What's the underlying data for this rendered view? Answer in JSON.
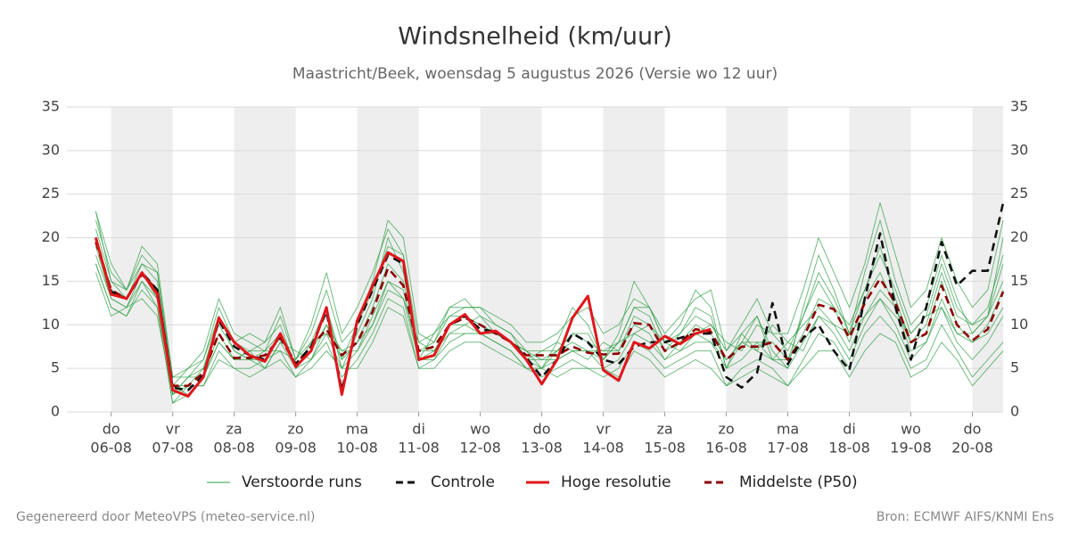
{
  "chart_data": {
    "type": "line",
    "title": "Windsnelheid (km/uur)",
    "subtitle": "Maastricht/Beek, woensdag  5 augustus 2026 (Versie wo 12 uur)",
    "footer_left": "Gegenereerd door MeteoVPS (meteo-service.nl)",
    "footer_right": "Bron: ECMWF AIFS/KNMI Ens",
    "grid": true,
    "xlim": [
      -0.72,
      14.5
    ],
    "ylim": [
      0,
      35
    ],
    "yticks": [
      0,
      5,
      10,
      15,
      20,
      25,
      30,
      35
    ],
    "xticks": [
      {
        "value": 0,
        "label": "06-08",
        "day": "do"
      },
      {
        "value": 1,
        "label": "07-08",
        "day": "vr"
      },
      {
        "value": 2,
        "label": "08-08",
        "day": "za"
      },
      {
        "value": 3,
        "label": "09-08",
        "day": "zo"
      },
      {
        "value": 4,
        "label": "10-08",
        "day": "ma"
      },
      {
        "value": 5,
        "label": "11-08",
        "day": "di"
      },
      {
        "value": 6,
        "label": "12-08",
        "day": "wo"
      },
      {
        "value": 7,
        "label": "13-08",
        "day": "do"
      },
      {
        "value": 8,
        "label": "14-08",
        "day": "vr"
      },
      {
        "value": 9,
        "label": "15-08",
        "day": "za"
      },
      {
        "value": 10,
        "label": "16-08",
        "day": "zo"
      },
      {
        "value": 11,
        "label": "17-08",
        "day": "ma"
      },
      {
        "value": 12,
        "label": "18-08",
        "day": "di"
      },
      {
        "value": 13,
        "label": "19-08",
        "day": "wo"
      },
      {
        "value": 14,
        "label": "20-08",
        "day": "do"
      }
    ],
    "x": [
      -0.25,
      0,
      0.25,
      0.5,
      0.75,
      1,
      1.25,
      1.5,
      1.75,
      2,
      2.25,
      2.5,
      2.75,
      3,
      3.25,
      3.5,
      3.75,
      4,
      4.25,
      4.5,
      4.75,
      5,
      5.25,
      5.5,
      5.75,
      6,
      6.25,
      6.5,
      6.75,
      7,
      7.25,
      7.5,
      7.75,
      8,
      8.25,
      8.5,
      8.75,
      9,
      9.25,
      9.5,
      9.75,
      10,
      10.25,
      10.5,
      10.75,
      11,
      11.25,
      11.5,
      11.75,
      12,
      12.25,
      12.5,
      12.75,
      13,
      13.25,
      13.5,
      13.75,
      14,
      14.25,
      14.5
    ],
    "series": [
      {
        "name": "Verstoorde runs",
        "color": "#2e9e44",
        "members": [
          [
            23,
            17,
            14,
            19,
            17,
            4,
            5,
            7,
            13,
            9,
            8,
            7,
            11,
            6,
            9,
            14,
            8,
            10,
            15,
            22,
            20,
            9,
            8,
            12,
            13,
            11,
            10,
            9,
            7,
            5,
            8,
            12,
            10,
            6,
            9,
            15,
            12,
            8,
            10,
            14,
            12,
            5,
            9,
            11,
            7,
            5,
            12,
            18,
            14,
            9,
            16,
            22,
            15,
            10,
            12,
            18,
            13,
            9,
            11,
            20
          ],
          [
            17,
            12,
            11,
            14,
            12,
            1,
            3,
            3,
            7,
            5,
            5,
            6,
            7,
            4,
            6,
            8,
            4,
            6,
            9,
            13,
            12,
            5,
            6,
            8,
            9,
            9,
            8,
            7,
            5,
            4,
            5,
            6,
            5,
            4,
            5,
            8,
            7,
            5,
            6,
            7,
            7,
            3,
            5,
            6,
            5,
            3,
            6,
            9,
            8,
            5,
            9,
            11,
            9,
            5,
            6,
            10,
            7,
            4,
            6,
            8
          ],
          [
            21,
            15,
            13,
            17,
            15,
            2,
            4,
            5,
            11,
            7,
            6,
            7,
            9,
            5,
            8,
            12,
            5,
            9,
            13,
            20,
            16,
            7,
            8,
            11,
            11,
            10,
            9,
            8,
            6,
            7,
            7,
            9,
            8,
            7,
            8,
            12,
            11,
            7,
            9,
            11,
            10,
            8,
            7,
            10,
            9,
            7,
            11,
            15,
            12,
            10,
            14,
            19,
            13,
            8,
            10,
            16,
            11,
            10,
            12,
            18
          ],
          [
            19,
            13,
            12,
            15,
            13,
            3,
            2,
            4,
            8,
            6,
            7,
            5,
            8,
            7,
            6,
            10,
            7,
            7,
            11,
            15,
            13,
            6,
            7,
            9,
            10,
            11,
            9,
            8,
            7,
            6,
            6,
            7,
            6,
            8,
            7,
            10,
            9,
            6,
            8,
            9,
            8,
            6,
            8,
            7,
            6,
            8,
            7,
            11,
            10,
            7,
            11,
            14,
            12,
            7,
            8,
            13,
            9,
            8,
            9,
            12
          ],
          [
            22,
            16,
            14,
            18,
            16,
            4,
            4,
            6,
            12,
            8,
            9,
            8,
            12,
            6,
            10,
            16,
            9,
            12,
            16,
            21,
            18,
            8,
            9,
            12,
            12,
            12,
            11,
            10,
            8,
            8,
            9,
            11,
            12,
            9,
            10,
            13,
            12,
            9,
            11,
            13,
            14,
            7,
            10,
            13,
            9,
            9,
            14,
            20,
            16,
            12,
            17,
            24,
            18,
            12,
            14,
            20,
            15,
            12,
            14,
            22
          ],
          [
            16,
            11,
            12,
            13,
            11,
            2,
            3,
            3,
            6,
            5,
            4,
            5,
            6,
            4,
            5,
            7,
            5,
            5,
            8,
            12,
            11,
            5,
            5,
            7,
            8,
            8,
            7,
            6,
            5,
            5,
            4,
            5,
            5,
            5,
            4,
            7,
            6,
            4,
            5,
            6,
            5,
            3,
            4,
            5,
            4,
            3,
            5,
            7,
            7,
            4,
            7,
            9,
            8,
            4,
            5,
            8,
            6,
            3,
            5,
            7
          ],
          [
            20,
            14,
            13,
            16,
            14,
            3,
            3,
            5,
            10,
            7,
            6,
            6,
            9,
            5,
            7,
            10,
            6,
            8,
            12,
            17,
            15,
            7,
            7,
            10,
            11,
            10,
            9,
            8,
            6,
            6,
            7,
            8,
            7,
            7,
            7,
            11,
            10,
            7,
            8,
            10,
            9,
            6,
            8,
            8,
            8,
            6,
            9,
            13,
            12,
            8,
            13,
            16,
            12,
            8,
            9,
            15,
            10,
            8,
            10,
            14
          ],
          [
            18,
            13,
            12,
            16,
            13,
            2,
            4,
            4,
            9,
            6,
            7,
            7,
            7,
            6,
            8,
            9,
            7,
            8,
            10,
            14,
            13,
            8,
            7,
            10,
            10,
            9,
            9,
            8,
            7,
            7,
            8,
            7,
            7,
            6,
            8,
            9,
            10,
            8,
            7,
            9,
            10,
            7,
            9,
            7,
            10,
            8,
            10,
            12,
            10,
            9,
            11,
            13,
            11,
            9,
            11,
            12,
            9,
            9,
            11,
            15
          ],
          [
            23,
            15,
            14,
            17,
            16,
            3,
            5,
            6,
            11,
            8,
            7,
            8,
            10,
            5,
            7,
            12,
            6,
            10,
            14,
            19,
            18,
            6,
            9,
            11,
            12,
            12,
            10,
            9,
            6,
            5,
            7,
            9,
            9,
            6,
            8,
            12,
            12,
            8,
            9,
            12,
            11,
            5,
            8,
            11,
            6,
            6,
            11,
            16,
            13,
            9,
            14,
            18,
            14,
            9,
            11,
            17,
            12,
            10,
            11,
            17
          ],
          [
            17,
            12,
            11,
            15,
            12,
            1,
            2,
            4,
            8,
            6,
            6,
            5,
            8,
            5,
            6,
            9,
            5,
            7,
            10,
            15,
            14,
            6,
            6,
            9,
            9,
            9,
            8,
            7,
            5,
            5,
            6,
            7,
            7,
            5,
            6,
            9,
            8,
            6,
            7,
            8,
            8,
            5,
            6,
            8,
            6,
            5,
            8,
            11,
            9,
            6,
            10,
            13,
            10,
            6,
            8,
            12,
            8,
            6,
            8,
            11
          ]
        ]
      },
      {
        "name": "Controle",
        "color": "#111111",
        "dashed": true,
        "values": [
          20,
          13.8,
          13,
          16,
          14,
          2.8,
          2.5,
          4.2,
          10.5,
          7.5,
          6.5,
          6,
          8.8,
          5.5,
          7.5,
          11.5,
          2.5,
          10,
          14,
          18,
          17,
          6,
          6.5,
          10,
          11,
          9.5,
          9.2,
          8,
          6.2,
          4,
          6,
          9,
          8,
          6,
          5.5,
          7.5,
          8,
          8,
          8.5,
          9,
          9,
          4,
          2.8,
          4.5,
          12.5,
          5.5,
          8.5,
          10,
          7,
          4.8,
          13,
          20.5,
          12,
          6,
          12,
          19.5,
          14.5,
          16.2,
          16.2,
          24
        ]
      },
      {
        "name": "Hoge resolutie",
        "color": "#e0161b",
        "dashed": false,
        "values": [
          20,
          13.5,
          13,
          16,
          13.5,
          2.5,
          1.8,
          4,
          10.8,
          8,
          6.5,
          5.8,
          9,
          5.2,
          7,
          12,
          2,
          10.5,
          14.5,
          18.3,
          17.3,
          6,
          6.5,
          10,
          11.2,
          9,
          9.3,
          8,
          6,
          3.2,
          6,
          10.8,
          13.3,
          4.8,
          3.6,
          8,
          7.3,
          8.7,
          7.8,
          9,
          9.5,
          null,
          null,
          null,
          null,
          null,
          null,
          null,
          null,
          null,
          null,
          null,
          null,
          null,
          null,
          null,
          null,
          null,
          null,
          null
        ]
      },
      {
        "name": "Middelste (P50)",
        "color": "#8b0000",
        "dashed": true,
        "values": [
          19.5,
          14,
          13,
          15.8,
          14,
          3,
          3,
          4.5,
          9,
          6.2,
          6.2,
          6.5,
          8.5,
          5.5,
          7.5,
          9.5,
          6.5,
          8,
          11.5,
          16.5,
          14.5,
          7,
          7.5,
          10,
          10.8,
          10,
          9,
          8,
          6.5,
          6.5,
          6.5,
          7.5,
          6.8,
          6.6,
          6.7,
          10.2,
          10,
          7,
          8,
          9.5,
          9.2,
          6,
          7.5,
          7.5,
          8,
          6,
          8.5,
          12.3,
          11.8,
          8.5,
          12.5,
          15.3,
          12.5,
          8,
          9,
          14.5,
          10,
          8.2,
          9.5,
          13.8
        ]
      }
    ]
  }
}
